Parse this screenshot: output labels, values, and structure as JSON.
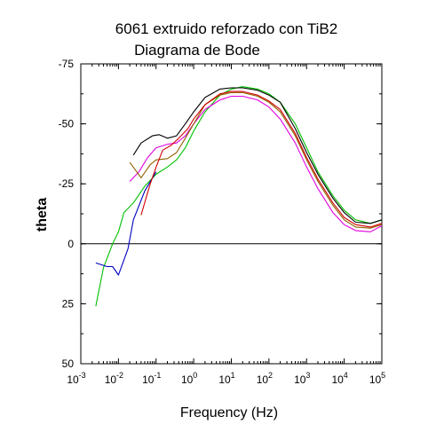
{
  "chart_data": {
    "type": "line",
    "title": "6061 extruido reforzado con TiB2",
    "subtitle": "Diagrama de Bode",
    "xlabel": "Frequency (Hz)",
    "ylabel": "theta",
    "xscale": "log",
    "xlim": [
      0.001,
      100000
    ],
    "ylim": [
      50,
      -75
    ],
    "y_inverted": true,
    "yticks": [
      -75,
      -50,
      -25,
      0,
      25,
      50
    ],
    "ytick_labels": [
      "-75",
      "-50",
      "-25",
      "0",
      "25",
      "50"
    ],
    "xticks": [
      {
        "base": "10",
        "exp": "-3"
      },
      {
        "base": "10",
        "exp": "-2"
      },
      {
        "base": "10",
        "exp": "-1"
      },
      {
        "base": "10",
        "exp": "0"
      },
      {
        "base": "10",
        "exp": "1"
      },
      {
        "base": "10",
        "exp": "2"
      },
      {
        "base": "10",
        "exp": "3"
      },
      {
        "base": "10",
        "exp": "4"
      },
      {
        "base": "10",
        "exp": "5"
      }
    ],
    "zero_line": 0,
    "grid": false,
    "legend": "none",
    "series": [
      {
        "color": "#00c000",
        "x": [
          0.0025,
          0.004,
          0.007,
          0.01,
          0.014,
          0.025,
          0.05,
          0.1,
          0.2,
          0.35,
          0.6,
          1,
          2,
          5,
          10,
          20,
          50,
          100,
          200,
          500,
          1000,
          2000,
          5000,
          10000,
          20000,
          50000,
          100000
        ],
        "y": [
          26,
          10,
          0,
          -5,
          -13,
          -17,
          -24,
          -29,
          -32,
          -35,
          -40,
          -47,
          -55,
          -62,
          -64.5,
          -65.5,
          -64.5,
          -62.5,
          -59,
          -50,
          -40,
          -30,
          -20,
          -14,
          -10,
          -8.5,
          -10
        ]
      },
      {
        "color": "#0000c0",
        "x": [
          0.0025,
          0.005,
          0.007,
          0.01,
          0.018,
          0.025,
          0.05,
          0.1
        ],
        "y": [
          8,
          9.5,
          9.5,
          13,
          2,
          -10,
          -22,
          -30
        ]
      },
      {
        "color": "#000000",
        "x": [
          0.025,
          0.04,
          0.08,
          0.12,
          0.2,
          0.35,
          0.6,
          1,
          2,
          5,
          10,
          20,
          50,
          100,
          200,
          500,
          1000,
          2000,
          5000,
          10000,
          20000,
          50000,
          100000
        ],
        "y": [
          -37,
          -42,
          -45,
          -45.5,
          -44,
          -45,
          -50,
          -55,
          -61,
          -64.5,
          -65,
          -65,
          -64,
          -62,
          -59,
          -48,
          -38,
          -29,
          -19,
          -13,
          -9,
          -8.5,
          -10
        ]
      },
      {
        "color": "#e000e0",
        "x": [
          0.02,
          0.035,
          0.06,
          0.1,
          0.2,
          0.35,
          0.6,
          1,
          2,
          5,
          10,
          20,
          50,
          100,
          200,
          500,
          1000,
          2000,
          5000,
          10000,
          20000,
          50000,
          100000
        ],
        "y": [
          -26,
          -30,
          -36,
          -40,
          -41.5,
          -42,
          -45,
          -50,
          -56,
          -60,
          -61.5,
          -61.5,
          -60,
          -57,
          -52,
          -42,
          -32,
          -23,
          -13,
          -8,
          -5.5,
          -5,
          -7.5
        ]
      },
      {
        "color": "#906000",
        "x": [
          0.02,
          0.04,
          0.07,
          0.1,
          0.2,
          0.35,
          0.6,
          1,
          2,
          5,
          10,
          20,
          50,
          100,
          200,
          500,
          1000,
          2000,
          5000,
          10000,
          20000,
          50000,
          100000
        ],
        "y": [
          -34,
          -27.5,
          -33,
          -35,
          -35.5,
          -38,
          -44,
          -50,
          -58,
          -62,
          -63,
          -63,
          -61.5,
          -59,
          -55,
          -45,
          -35,
          -26,
          -16,
          -10,
          -7,
          -6.5,
          -8
        ]
      },
      {
        "color": "#d00000",
        "x": [
          0.04,
          0.07,
          0.1,
          0.15,
          0.25,
          0.4,
          0.7,
          1,
          2,
          5,
          10,
          20,
          50,
          100,
          200,
          500,
          1000,
          2000,
          5000,
          10000,
          20000,
          50000,
          100000
        ],
        "y": [
          -12,
          -25,
          -32,
          -39,
          -41,
          -44,
          -48,
          -52,
          -58,
          -62.5,
          -63.5,
          -63.5,
          -62,
          -59.5,
          -56,
          -46,
          -36,
          -27,
          -17,
          -11,
          -8,
          -7,
          -8.5
        ]
      }
    ]
  }
}
